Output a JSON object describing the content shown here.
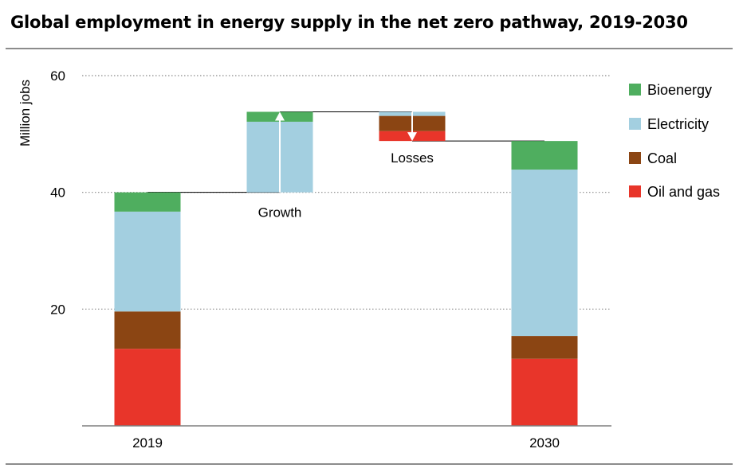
{
  "title": "Global employment in energy supply in the net zero pathway, 2019-2030",
  "chart_data": {
    "type": "bar",
    "subtype": "stacked-waterfall",
    "title": "Global employment in energy supply in the net zero pathway, 2019-2030",
    "xlabel": "",
    "ylabel": "Million jobs",
    "ylim": [
      0,
      60
    ],
    "yticks": [
      20,
      40,
      60
    ],
    "grid": "dotted horizontal",
    "legend_position": "right",
    "series": [
      {
        "name": "Oil and gas",
        "color": "#e8352a"
      },
      {
        "name": "Coal",
        "color": "#8b4513"
      },
      {
        "name": "Electricity",
        "color": "#a3cfe0"
      },
      {
        "name": "Bioenergy",
        "color": "#4fae5f"
      }
    ],
    "bars": [
      {
        "category": "2019",
        "kind": "total",
        "segments": [
          {
            "series": "Oil and gas",
            "from": 0,
            "to": 13.2
          },
          {
            "series": "Coal",
            "from": 13.2,
            "to": 19.6
          },
          {
            "series": "Electricity",
            "from": 19.6,
            "to": 36.7
          },
          {
            "series": "Bioenergy",
            "from": 36.7,
            "to": 40.0
          }
        ]
      },
      {
        "category": "",
        "kind": "change",
        "label": "Growth",
        "arrow": "up",
        "segments": [
          {
            "series": "Electricity",
            "from": 40.0,
            "to": 52.1
          },
          {
            "series": "Bioenergy",
            "from": 52.1,
            "to": 53.8
          }
        ]
      },
      {
        "category": "",
        "kind": "change",
        "label": "Losses",
        "arrow": "down",
        "segments": [
          {
            "series": "Oil and gas",
            "from": 48.8,
            "to": 50.5
          },
          {
            "series": "Coal",
            "from": 50.5,
            "to": 53.1
          },
          {
            "series": "Electricity",
            "from": 53.1,
            "to": 53.8
          }
        ]
      },
      {
        "category": "2030",
        "kind": "total",
        "segments": [
          {
            "series": "Oil and gas",
            "from": 0,
            "to": 11.5
          },
          {
            "series": "Coal",
            "from": 11.5,
            "to": 15.4
          },
          {
            "series": "Electricity",
            "from": 15.4,
            "to": 43.9
          },
          {
            "series": "Bioenergy",
            "from": 43.9,
            "to": 48.8
          }
        ]
      }
    ],
    "legend_order": [
      "Bioenergy",
      "Electricity",
      "Coal",
      "Oil and gas"
    ]
  }
}
